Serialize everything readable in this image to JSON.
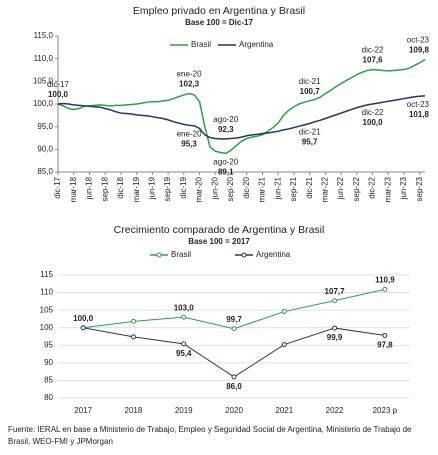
{
  "chart_data": [
    {
      "type": "line",
      "title": "Empleo privado en Argentina y Brasil",
      "subtitle": "Base 100 = Dic-17",
      "categories": [
        "dic-17",
        null,
        null,
        "mar-18",
        null,
        null,
        "jun-18",
        null,
        null,
        "sep-18",
        null,
        null,
        "dic-18",
        null,
        null,
        "mar-19",
        null,
        null,
        "jun-19",
        null,
        null,
        "sep-19",
        null,
        null,
        "dic-19",
        null,
        null,
        "mar-20",
        null,
        null,
        "jun-20",
        null,
        null,
        "sep-20",
        null,
        null,
        "dic-20",
        null,
        null,
        "mar-21",
        null,
        null,
        "jun-21",
        null,
        null,
        "sep-21",
        null,
        null,
        "dic-21",
        null,
        null,
        "mar-22",
        null,
        null,
        "jun-22",
        null,
        null,
        "sep-22",
        null,
        null,
        "dic-22",
        null,
        null,
        "mar-23",
        null,
        null,
        "jun-23",
        null,
        null,
        "sep-23",
        null
      ],
      "series": [
        {
          "name": "Brasil",
          "color": "#2e9e4a",
          "values": [
            100.0,
            99.6,
            99.0,
            98.8,
            99.0,
            99.5,
            99.6,
            99.7,
            99.8,
            99.7,
            99.6,
            99.7,
            99.7,
            99.8,
            99.9,
            100.0,
            100.2,
            100.4,
            100.5,
            100.5,
            100.7,
            100.8,
            101.2,
            101.6,
            102.0,
            102.3,
            102.0,
            100.5,
            95.0,
            90.5,
            89.6,
            89.3,
            89.1,
            89.8,
            90.8,
            91.8,
            92.4,
            92.7,
            92.9,
            93.2,
            94.0,
            94.8,
            95.8,
            97.5,
            98.6,
            99.4,
            100.0,
            100.4,
            100.7,
            101.0,
            101.5,
            102.3,
            103.0,
            103.8,
            104.5,
            105.2,
            105.8,
            106.5,
            107.0,
            107.4,
            107.6,
            107.5,
            107.4,
            107.3,
            107.4,
            107.5,
            107.6,
            107.9,
            108.5,
            109.1,
            109.8
          ],
          "value_labels": [
            "100,0",
            null,
            null,
            null,
            null,
            null,
            null,
            null,
            null,
            null,
            null,
            null,
            null,
            null,
            null,
            null,
            null,
            null,
            null,
            null,
            null,
            null,
            null,
            null,
            null,
            "102,3",
            null,
            null,
            null,
            null,
            null,
            null,
            "89,1",
            null,
            null,
            null,
            null,
            null,
            null,
            null,
            null,
            null,
            null,
            null,
            null,
            null,
            null,
            null,
            "100,7",
            null,
            null,
            null,
            null,
            null,
            null,
            null,
            null,
            null,
            null,
            null,
            "107,6",
            null,
            null,
            null,
            null,
            null,
            null,
            null,
            null,
            null,
            "109,8"
          ],
          "date_labels": [
            "dic-17",
            null,
            null,
            null,
            null,
            null,
            null,
            null,
            null,
            null,
            null,
            null,
            null,
            null,
            null,
            null,
            null,
            null,
            null,
            null,
            null,
            null,
            null,
            null,
            null,
            "ene-20",
            null,
            null,
            null,
            null,
            null,
            null,
            "ago-20",
            null,
            null,
            null,
            null,
            null,
            null,
            null,
            null,
            null,
            null,
            null,
            null,
            null,
            null,
            null,
            "dic-21",
            null,
            null,
            null,
            null,
            null,
            null,
            null,
            null,
            null,
            null,
            null,
            "dic-22",
            null,
            null,
            null,
            null,
            null,
            null,
            null,
            null,
            null,
            "oct-23"
          ]
        },
        {
          "name": "Argentina",
          "color": "#1f3864",
          "values": [
            100.0,
            100.1,
            100.0,
            99.8,
            99.7,
            99.6,
            99.5,
            99.4,
            99.3,
            99.0,
            98.7,
            98.3,
            98.0,
            97.9,
            97.8,
            97.6,
            97.5,
            97.4,
            97.2,
            97.0,
            96.8,
            96.5,
            96.1,
            95.8,
            95.5,
            95.3,
            95.2,
            94.6,
            93.2,
            92.6,
            92.4,
            92.3,
            92.3,
            92.4,
            92.5,
            92.7,
            93.0,
            93.2,
            93.3,
            93.5,
            93.6,
            93.8,
            94.0,
            94.3,
            94.5,
            94.8,
            95.1,
            95.4,
            95.7,
            96.1,
            96.4,
            96.8,
            97.2,
            97.6,
            98.0,
            98.4,
            98.8,
            99.2,
            99.5,
            99.8,
            100.0,
            100.2,
            100.4,
            100.6,
            100.8,
            101.0,
            101.2,
            101.4,
            101.6,
            101.7,
            101.8
          ],
          "value_labels": [
            null,
            null,
            null,
            null,
            null,
            null,
            null,
            null,
            null,
            null,
            null,
            null,
            null,
            null,
            null,
            null,
            null,
            null,
            null,
            null,
            null,
            null,
            null,
            null,
            null,
            "95,3",
            null,
            null,
            null,
            null,
            null,
            null,
            "92,3",
            null,
            null,
            null,
            null,
            null,
            null,
            null,
            null,
            null,
            null,
            null,
            null,
            null,
            null,
            null,
            "95,7",
            null,
            null,
            null,
            null,
            null,
            null,
            null,
            null,
            null,
            null,
            null,
            "100,0",
            null,
            null,
            null,
            null,
            null,
            null,
            null,
            null,
            null,
            "101,8"
          ],
          "date_labels": [
            null,
            null,
            null,
            null,
            null,
            null,
            null,
            null,
            null,
            null,
            null,
            null,
            null,
            null,
            null,
            null,
            null,
            null,
            null,
            null,
            null,
            null,
            null,
            null,
            null,
            "ene-20",
            null,
            null,
            null,
            null,
            null,
            null,
            "ago-20",
            null,
            null,
            null,
            null,
            null,
            null,
            null,
            null,
            null,
            null,
            null,
            null,
            null,
            null,
            null,
            "dic-21",
            null,
            null,
            null,
            null,
            null,
            null,
            null,
            null,
            null,
            null,
            null,
            "dic-22",
            null,
            null,
            null,
            null,
            null,
            null,
            null,
            null,
            null,
            "oct-23"
          ]
        }
      ],
      "ylim": [
        85,
        115
      ],
      "yticks": [
        {
          "value": 85,
          "label": "85,0"
        },
        {
          "value": 90,
          "label": "90,0"
        },
        {
          "value": 95,
          "label": "95,0"
        },
        {
          "value": 100,
          "label": "100,0"
        },
        {
          "value": 105,
          "label": "105,0"
        },
        {
          "value": 110,
          "label": "110,0"
        },
        {
          "value": 115,
          "label": "115,0"
        }
      ],
      "grid": false,
      "markers": false,
      "legend": "top"
    },
    {
      "type": "line",
      "title": "Crecimiento comparado de Argentina y Brasil",
      "subtitle": "Base 100 = 2017",
      "categories": [
        "2017",
        "2018",
        "2019",
        "2020",
        "2021",
        "2022",
        "2023 p"
      ],
      "series": [
        {
          "name": "Brasil",
          "color": "#2e9e4a",
          "values": [
            100.0,
            101.8,
            103.0,
            99.7,
            104.6,
            107.7,
            110.9
          ],
          "value_labels": [
            "100,0",
            null,
            "103,0",
            "99,7",
            null,
            "107,7",
            "110,9"
          ]
        },
        {
          "name": "Argentina",
          "color": "#1f3864",
          "values": [
            100.0,
            97.4,
            95.4,
            86.0,
            95.2,
            99.9,
            97.8
          ],
          "value_labels": [
            null,
            null,
            "95,4",
            "86,0",
            null,
            "99,9",
            "97,8"
          ]
        }
      ],
      "ylim": [
        80,
        115
      ],
      "yticks": [
        80,
        85,
        90,
        95,
        100,
        105,
        110,
        115
      ],
      "grid": true,
      "markers": true,
      "legend": "top"
    }
  ],
  "source": "Fuente: IERAL en base a Ministerio de Trabajo, Empleo y Seguridad Social de Argentina, Ministerio de Trabajo de Brasil, WEO-FMI y JPMorgan"
}
